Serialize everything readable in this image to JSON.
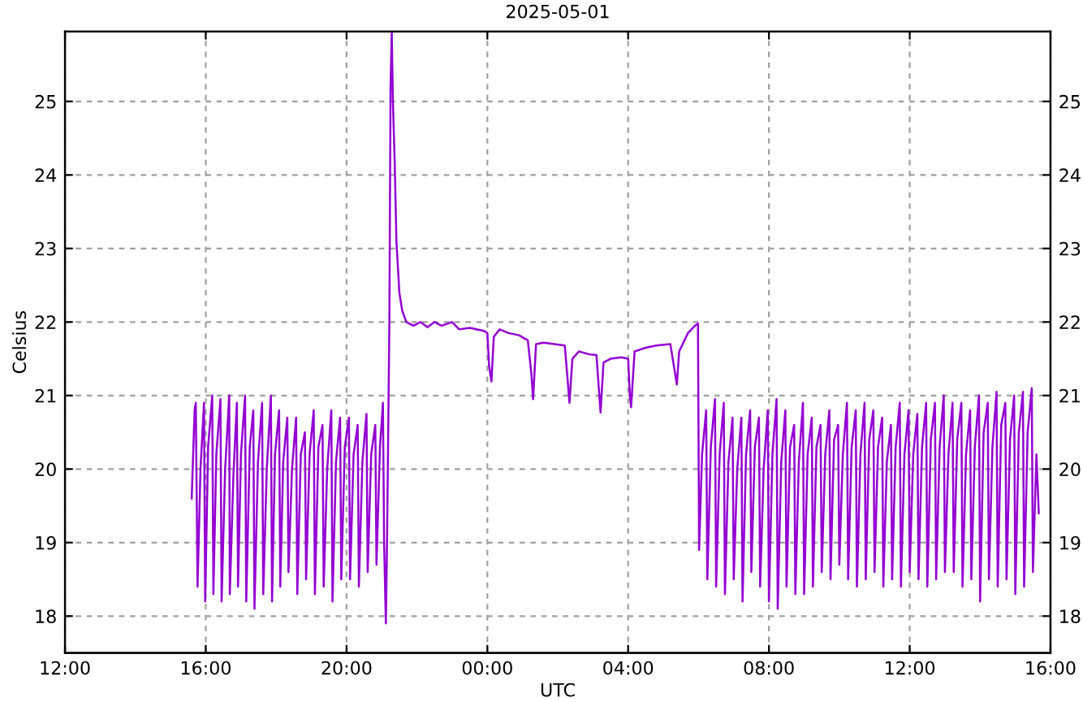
{
  "chart_data": {
    "type": "line",
    "title": "2025-05-01",
    "xlabel": "UTC",
    "ylabel": "Celsius",
    "xlim": [
      "2025-04-30T12:00",
      "2025-05-01T16:00"
    ],
    "ylim": [
      17.5,
      25.95
    ],
    "y2lim": [
      17.5,
      25.95
    ],
    "xticks": [
      {
        "value": "2025-04-30T12:00",
        "label": "12:00"
      },
      {
        "value": "2025-04-30T16:00",
        "label": "16:00"
      },
      {
        "value": "2025-04-30T20:00",
        "label": "20:00"
      },
      {
        "value": "2025-05-01T00:00",
        "label": "00:00"
      },
      {
        "value": "2025-05-01T04:00",
        "label": "04:00"
      },
      {
        "value": "2025-05-01T08:00",
        "label": "08:00"
      },
      {
        "value": "2025-05-01T12:00",
        "label": "12:00"
      },
      {
        "value": "2025-05-01T16:00",
        "label": "16:00"
      }
    ],
    "yticks": [
      18,
      19,
      20,
      21,
      22,
      23,
      24,
      25
    ],
    "y2ticks": [
      18,
      19,
      20,
      21,
      22,
      23,
      24,
      25
    ],
    "grid": true,
    "marker": "none",
    "line_style": "solid",
    "series": [
      {
        "color": "#9400d3",
        "x": [
          "2025-04-30T15:36",
          "2025-04-30T15:41",
          "2025-04-30T15:43",
          "2025-04-30T15:46",
          "2025-04-30T15:51",
          "2025-04-30T15:57",
          "2025-04-30T15:59",
          "2025-04-30T16:04",
          "2025-04-30T16:11",
          "2025-04-30T16:13",
          "2025-04-30T16:18",
          "2025-04-30T16:25",
          "2025-04-30T16:27",
          "2025-04-30T16:33",
          "2025-04-30T16:40",
          "2025-04-30T16:41",
          "2025-04-30T16:47",
          "2025-04-30T16:53",
          "2025-04-30T16:55",
          "2025-04-30T17:00",
          "2025-04-30T17:07",
          "2025-04-30T17:09",
          "2025-04-30T17:15",
          "2025-04-30T17:21",
          "2025-04-30T17:23",
          "2025-04-30T17:29",
          "2025-04-30T17:36",
          "2025-04-30T17:38",
          "2025-04-30T17:44",
          "2025-04-30T17:51",
          "2025-04-30T17:53",
          "2025-04-30T17:58",
          "2025-04-30T18:05",
          "2025-04-30T18:07",
          "2025-04-30T18:12",
          "2025-04-30T18:19",
          "2025-04-30T18:21",
          "2025-04-30T18:27",
          "2025-04-30T18:34",
          "2025-04-30T18:36",
          "2025-04-30T18:42",
          "2025-04-30T18:49",
          "2025-04-30T18:51",
          "2025-04-30T18:57",
          "2025-04-30T19:04",
          "2025-04-30T19:06",
          "2025-04-30T19:12",
          "2025-04-30T19:19",
          "2025-04-30T19:21",
          "2025-04-30T19:27",
          "2025-04-30T19:34",
          "2025-04-30T19:36",
          "2025-04-30T19:42",
          "2025-04-30T19:49",
          "2025-04-30T19:51",
          "2025-04-30T19:57",
          "2025-04-30T20:04",
          "2025-04-30T20:06",
          "2025-04-30T20:12",
          "2025-04-30T20:19",
          "2025-04-30T20:21",
          "2025-04-30T20:27",
          "2025-04-30T20:34",
          "2025-04-30T20:36",
          "2025-04-30T20:42",
          "2025-04-30T20:49",
          "2025-04-30T20:51",
          "2025-04-30T20:57",
          "2025-04-30T21:02",
          "2025-04-30T21:04",
          "2025-04-30T21:07",
          "2025-04-30T21:09",
          "2025-04-30T21:13",
          "2025-04-30T21:15",
          "2025-04-30T21:17",
          "2025-04-30T21:19",
          "2025-04-30T21:22",
          "2025-04-30T21:25",
          "2025-04-30T21:30",
          "2025-04-30T21:35",
          "2025-04-30T21:42",
          "2025-04-30T21:54",
          "2025-04-30T22:06",
          "2025-04-30T22:18",
          "2025-04-30T22:30",
          "2025-04-30T22:42",
          "2025-04-30T23:00",
          "2025-04-30T23:12",
          "2025-04-30T23:30",
          "2025-04-30T23:54",
          "2025-05-01T00:00",
          "2025-05-01T00:03",
          "2025-05-01T00:07",
          "2025-05-01T00:11",
          "2025-05-01T00:21",
          "2025-05-01T00:36",
          "2025-05-01T00:54",
          "2025-05-01T01:09",
          "2025-05-01T01:15",
          "2025-05-01T01:18",
          "2025-05-01T01:23",
          "2025-05-01T01:36",
          "2025-05-01T01:54",
          "2025-05-01T02:12",
          "2025-05-01T02:17",
          "2025-05-01T02:20",
          "2025-05-01T02:25",
          "2025-05-01T02:36",
          "2025-05-01T02:54",
          "2025-05-01T03:06",
          "2025-05-01T03:10",
          "2025-05-01T03:13",
          "2025-05-01T03:18",
          "2025-05-01T03:30",
          "2025-05-01T03:48",
          "2025-05-01T04:00",
          "2025-05-01T04:03",
          "2025-05-01T04:05",
          "2025-05-01T04:11",
          "2025-05-01T04:30",
          "2025-05-01T04:48",
          "2025-05-01T05:12",
          "2025-05-01T05:20",
          "2025-05-01T05:23",
          "2025-05-01T05:27",
          "2025-05-01T05:42",
          "2025-05-01T05:54",
          "2025-05-01T05:59",
          "2025-05-01T06:01",
          "2025-05-01T06:06",
          "2025-05-01T06:13",
          "2025-05-01T06:15",
          "2025-05-01T06:21",
          "2025-05-01T06:28",
          "2025-05-01T06:30",
          "2025-05-01T06:36",
          "2025-05-01T06:43",
          "2025-05-01T06:45",
          "2025-05-01T06:51",
          "2025-05-01T06:58",
          "2025-05-01T07:00",
          "2025-05-01T07:06",
          "2025-05-01T07:13",
          "2025-05-01T07:15",
          "2025-05-01T07:21",
          "2025-05-01T07:28",
          "2025-05-01T07:30",
          "2025-05-01T07:36",
          "2025-05-01T07:43",
          "2025-05-01T07:45",
          "2025-05-01T07:51",
          "2025-05-01T07:58",
          "2025-05-01T08:00",
          "2025-05-01T08:06",
          "2025-05-01T08:13",
          "2025-05-01T08:15",
          "2025-05-01T08:21",
          "2025-05-01T08:28",
          "2025-05-01T08:30",
          "2025-05-01T08:36",
          "2025-05-01T08:43",
          "2025-05-01T08:45",
          "2025-05-01T08:51",
          "2025-05-01T08:58",
          "2025-05-01T09:00",
          "2025-05-01T09:06",
          "2025-05-01T09:13",
          "2025-05-01T09:15",
          "2025-05-01T09:21",
          "2025-05-01T09:28",
          "2025-05-01T09:30",
          "2025-05-01T09:36",
          "2025-05-01T09:43",
          "2025-05-01T09:45",
          "2025-05-01T09:51",
          "2025-05-01T09:58",
          "2025-05-01T10:00",
          "2025-05-01T10:06",
          "2025-05-01T10:13",
          "2025-05-01T10:15",
          "2025-05-01T10:21",
          "2025-05-01T10:28",
          "2025-05-01T10:30",
          "2025-05-01T10:36",
          "2025-05-01T10:43",
          "2025-05-01T10:45",
          "2025-05-01T10:51",
          "2025-05-01T10:58",
          "2025-05-01T11:00",
          "2025-05-01T11:06",
          "2025-05-01T11:13",
          "2025-05-01T11:15",
          "2025-05-01T11:21",
          "2025-05-01T11:28",
          "2025-05-01T11:30",
          "2025-05-01T11:36",
          "2025-05-01T11:43",
          "2025-05-01T11:45",
          "2025-05-01T11:51",
          "2025-05-01T11:58",
          "2025-05-01T12:00",
          "2025-05-01T12:06",
          "2025-05-01T12:13",
          "2025-05-01T12:15",
          "2025-05-01T12:21",
          "2025-05-01T12:28",
          "2025-05-01T12:30",
          "2025-05-01T12:36",
          "2025-05-01T12:43",
          "2025-05-01T12:45",
          "2025-05-01T12:51",
          "2025-05-01T12:58",
          "2025-05-01T13:00",
          "2025-05-01T13:06",
          "2025-05-01T13:13",
          "2025-05-01T13:15",
          "2025-05-01T13:21",
          "2025-05-01T13:28",
          "2025-05-01T13:30",
          "2025-05-01T13:36",
          "2025-05-01T13:43",
          "2025-05-01T13:45",
          "2025-05-01T13:51",
          "2025-05-01T13:58",
          "2025-05-01T14:00",
          "2025-05-01T14:06",
          "2025-05-01T14:13",
          "2025-05-01T14:15",
          "2025-05-01T14:21",
          "2025-05-01T14:28",
          "2025-05-01T14:30",
          "2025-05-01T14:36",
          "2025-05-01T14:43",
          "2025-05-01T14:45",
          "2025-05-01T14:51",
          "2025-05-01T14:58",
          "2025-05-01T15:00",
          "2025-05-01T15:06",
          "2025-05-01T15:13",
          "2025-05-01T15:15",
          "2025-05-01T15:21",
          "2025-05-01T15:28",
          "2025-05-01T15:30",
          "2025-05-01T15:36",
          "2025-05-01T15:40"
        ],
        "values": [
          19.6,
          20.8,
          20.9,
          18.4,
          20.0,
          20.9,
          18.2,
          20.3,
          21.0,
          18.3,
          20.2,
          20.95,
          18.2,
          20.0,
          21.0,
          18.3,
          19.9,
          20.9,
          18.4,
          20.2,
          21.0,
          18.2,
          20.3,
          20.8,
          18.1,
          20.1,
          20.9,
          18.3,
          20.0,
          21.0,
          18.2,
          20.2,
          20.8,
          18.4,
          20.1,
          20.7,
          18.6,
          20.0,
          20.7,
          18.3,
          20.2,
          20.5,
          18.5,
          20.2,
          20.8,
          18.3,
          20.3,
          20.6,
          18.4,
          20.0,
          20.8,
          18.2,
          20.1,
          20.7,
          18.5,
          20.3,
          20.7,
          18.5,
          20.2,
          20.6,
          18.4,
          20.1,
          20.75,
          18.6,
          20.2,
          20.6,
          18.7,
          20.3,
          20.9,
          19.0,
          17.9,
          19.0,
          22.0,
          25.2,
          25.95,
          25.0,
          24.2,
          23.1,
          22.4,
          22.15,
          22.0,
          21.95,
          22.0,
          21.93,
          22.0,
          21.95,
          22.0,
          21.9,
          21.92,
          21.88,
          21.85,
          21.4,
          21.19,
          21.8,
          21.9,
          21.85,
          21.82,
          21.75,
          21.3,
          20.95,
          21.7,
          21.72,
          21.7,
          21.68,
          21.2,
          20.9,
          21.5,
          21.6,
          21.56,
          21.55,
          21.1,
          20.77,
          21.45,
          21.5,
          21.52,
          21.5,
          21.0,
          20.84,
          21.6,
          21.65,
          21.68,
          21.7,
          21.3,
          21.15,
          21.6,
          21.85,
          21.95,
          21.98,
          18.9,
          20.2,
          20.8,
          18.5,
          20.3,
          20.95,
          18.4,
          20.2,
          20.9,
          18.3,
          20.1,
          20.7,
          18.5,
          20.0,
          20.7,
          18.2,
          20.2,
          20.8,
          18.6,
          20.3,
          20.7,
          18.4,
          20.0,
          20.8,
          18.2,
          20.2,
          20.95,
          18.1,
          20.1,
          20.8,
          18.4,
          20.3,
          20.6,
          18.3,
          20.1,
          20.9,
          18.3,
          20.2,
          20.7,
          18.4,
          20.3,
          20.6,
          18.6,
          20.2,
          20.8,
          18.5,
          20.4,
          20.6,
          18.7,
          20.2,
          20.9,
          18.5,
          20.3,
          20.8,
          18.4,
          20.2,
          20.9,
          18.5,
          20.4,
          20.8,
          18.6,
          20.3,
          20.7,
          18.4,
          20.1,
          20.6,
          18.5,
          20.3,
          20.9,
          18.4,
          20.2,
          20.8,
          18.6,
          20.2,
          20.75,
          18.5,
          20.3,
          20.9,
          18.4,
          20.4,
          20.9,
          18.5,
          20.3,
          21.0,
          18.6,
          20.2,
          20.9,
          18.6,
          20.4,
          20.9,
          18.4,
          20.2,
          20.8,
          18.5,
          20.3,
          21.0,
          18.2,
          20.5,
          20.9,
          18.5,
          20.3,
          21.05,
          18.4,
          20.6,
          20.9,
          18.5,
          20.4,
          21.0,
          18.3,
          20.5,
          21.05,
          18.4,
          20.5,
          21.1,
          18.6,
          20.2,
          19.4
        ]
      }
    ]
  }
}
